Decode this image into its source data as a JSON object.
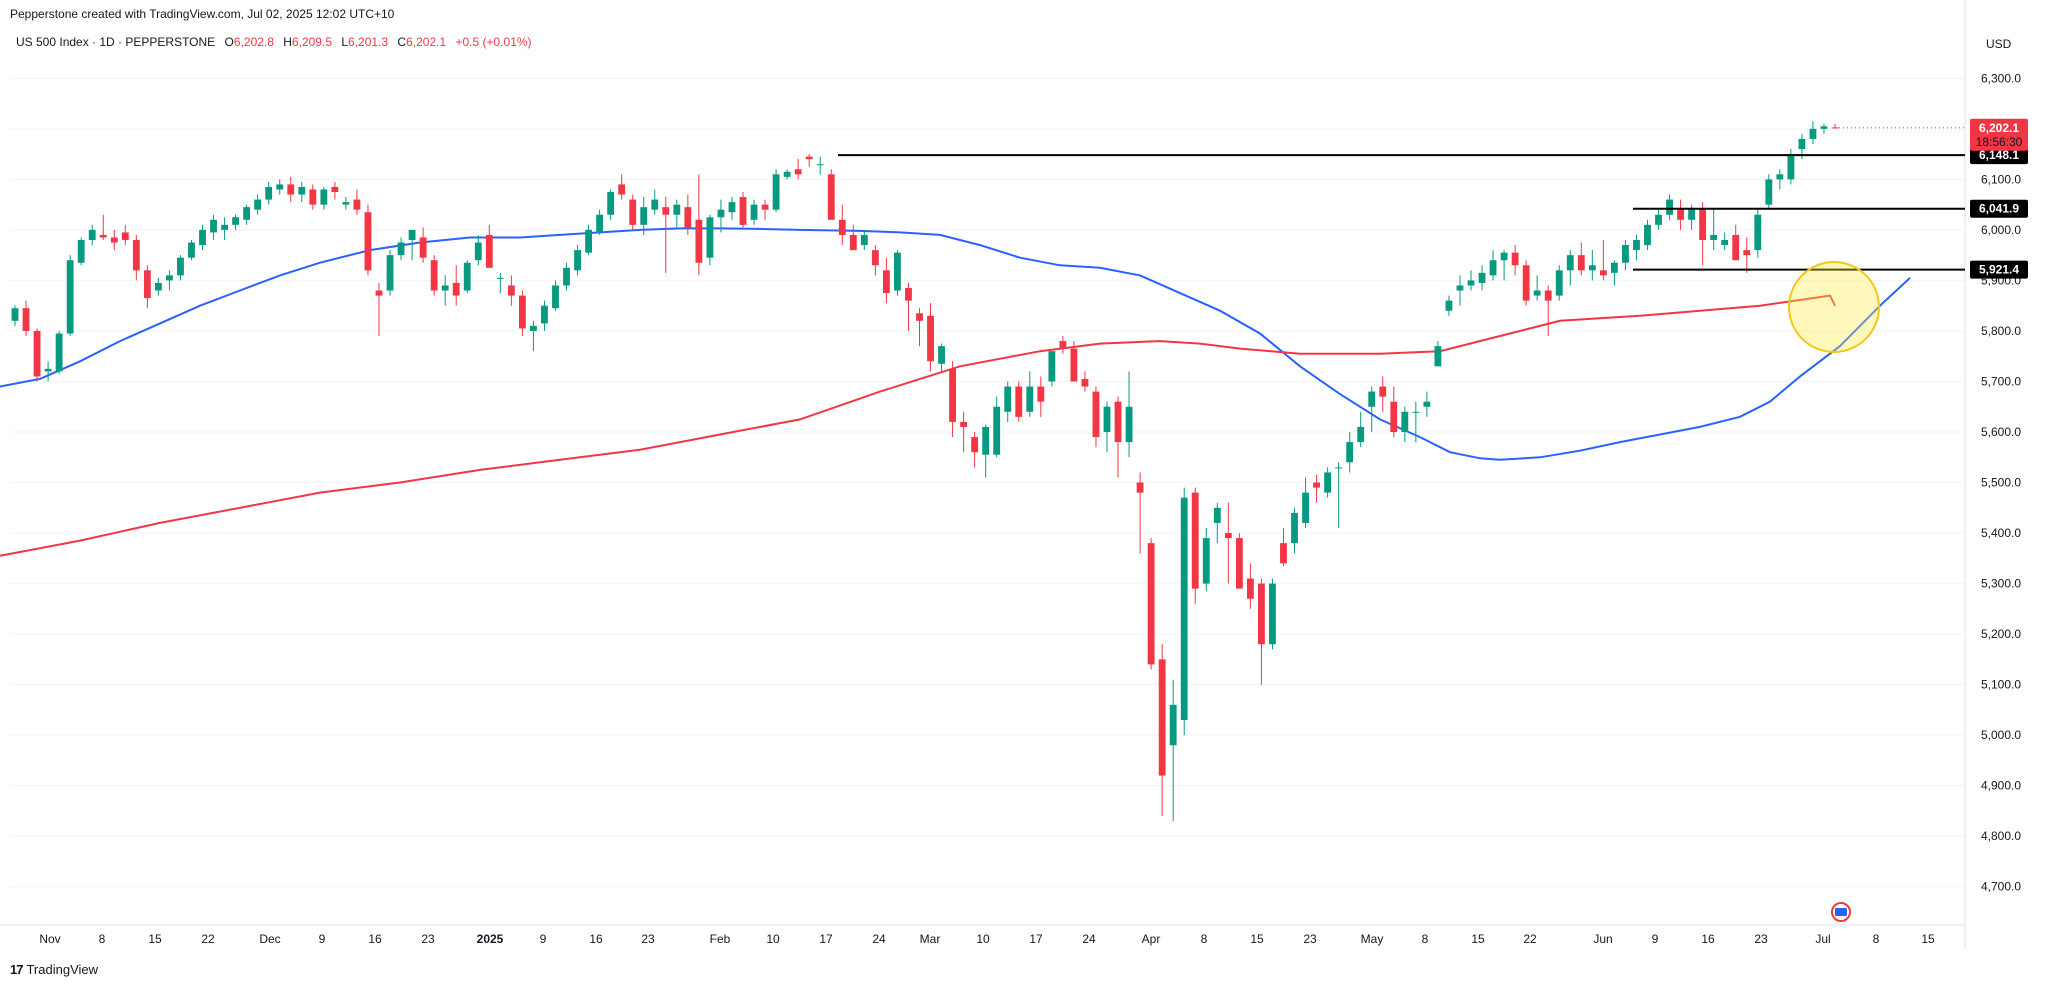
{
  "header": {
    "attribution": "Pepperstone created with TradingView.com, Jul 02, 2025 12:02 UTC+10"
  },
  "symbol": {
    "name": "US 500 Index · 1D · PEPPERSTONE",
    "open_label": "O",
    "open": "6,202.8",
    "high_label": "H",
    "high": "6,209.5",
    "low_label": "L",
    "low": "6,201.3",
    "close_label": "C",
    "close": "6,202.1",
    "change": "+0.5 (+0.01%)"
  },
  "currency": "USD",
  "footer": {
    "brand": "TradingView",
    "mark": "17"
  },
  "colors": {
    "up": "#089981",
    "down": "#f23645",
    "ma_fast": "#2962ff",
    "ma_slow": "#f23645",
    "highlight": "#ffeb3b"
  },
  "chart_data": {
    "type": "candlestick",
    "ylim": [
      4650,
      6360
    ],
    "yticks": [
      "6,300.0",
      "6,200.0",
      "6,100.0",
      "6,000.0",
      "5,900.0",
      "5,800.0",
      "5,700.0",
      "5,600.0",
      "5,500.0",
      "5,400.0",
      "5,300.0",
      "5,200.0",
      "5,100.0",
      "5,000.0",
      "4,900.0",
      "4,800.0",
      "4,700.0"
    ],
    "xticks": [
      "Nov",
      "8",
      "15",
      "22",
      "Dec",
      "9",
      "16",
      "23",
      "2025",
      "9",
      "16",
      "23",
      "Feb",
      "10",
      "17",
      "24",
      "Mar",
      "10",
      "17",
      "24",
      "Apr",
      "8",
      "15",
      "23",
      "May",
      "8",
      "15",
      "22",
      "Jun",
      "9",
      "16",
      "23",
      "Jul",
      "8",
      "15"
    ],
    "horizontal_levels": [
      {
        "price": 6148.1,
        "label": "6,148.1"
      },
      {
        "price": 6041.9,
        "label": "6,041.9"
      },
      {
        "price": 5921.4,
        "label": "5,921.4"
      }
    ],
    "last_price": {
      "label": "6,202.1",
      "countdown": "18:56:30"
    },
    "candles": [
      [
        5820,
        5850,
        5810,
        5845
      ],
      [
        5845,
        5860,
        5790,
        5800
      ],
      [
        5800,
        5805,
        5700,
        5710
      ],
      [
        5720,
        5740,
        5700,
        5725
      ],
      [
        5720,
        5800,
        5715,
        5795
      ],
      [
        5795,
        5950,
        5790,
        5940
      ],
      [
        5935,
        5985,
        5930,
        5980
      ],
      [
        5980,
        6010,
        5970,
        6000
      ],
      [
        5990,
        6030,
        5980,
        5985
      ],
      [
        5985,
        6000,
        5960,
        5975
      ],
      [
        5995,
        6010,
        5970,
        5980
      ],
      [
        5980,
        5990,
        5900,
        5920
      ],
      [
        5920,
        5930,
        5845,
        5865
      ],
      [
        5880,
        5905,
        5870,
        5895
      ],
      [
        5900,
        5920,
        5880,
        5910
      ],
      [
        5910,
        5950,
        5900,
        5945
      ],
      [
        5945,
        5980,
        5940,
        5975
      ],
      [
        5970,
        6010,
        5960,
        6000
      ],
      [
        5995,
        6030,
        5980,
        6020
      ],
      [
        6000,
        6025,
        5980,
        6010
      ],
      [
        6010,
        6030,
        6000,
        6025
      ],
      [
        6020,
        6050,
        6010,
        6045
      ],
      [
        6040,
        6070,
        6030,
        6060
      ],
      [
        6060,
        6095,
        6050,
        6085
      ],
      [
        6080,
        6100,
        6070,
        6090
      ],
      [
        6090,
        6105,
        6055,
        6070
      ],
      [
        6070,
        6095,
        6055,
        6085
      ],
      [
        6080,
        6090,
        6040,
        6050
      ],
      [
        6050,
        6085,
        6040,
        6080
      ],
      [
        6085,
        6095,
        6060,
        6075
      ],
      [
        6050,
        6065,
        6040,
        6055
      ],
      [
        6060,
        6080,
        6030,
        6040
      ],
      [
        6035,
        6050,
        5910,
        5920
      ],
      [
        5880,
        5895,
        5790,
        5870
      ],
      [
        5880,
        5960,
        5870,
        5950
      ],
      [
        5950,
        5985,
        5940,
        5975
      ],
      [
        5980,
        6000,
        5940,
        6000
      ],
      [
        5985,
        6005,
        5935,
        5945
      ],
      [
        5940,
        5950,
        5870,
        5880
      ],
      [
        5880,
        5910,
        5850,
        5890
      ],
      [
        5895,
        5930,
        5850,
        5870
      ],
      [
        5880,
        5940,
        5875,
        5935
      ],
      [
        5940,
        5990,
        5930,
        5975
      ],
      [
        5990,
        6010,
        5935,
        5925
      ],
      [
        5905,
        5915,
        5875,
        5905
      ],
      [
        5890,
        5910,
        5850,
        5870
      ],
      [
        5870,
        5880,
        5790,
        5805
      ],
      [
        5800,
        5820,
        5760,
        5810
      ],
      [
        5815,
        5860,
        5800,
        5850
      ],
      [
        5845,
        5900,
        5840,
        5890
      ],
      [
        5890,
        5935,
        5880,
        5925
      ],
      [
        5920,
        5970,
        5910,
        5960
      ],
      [
        5955,
        6010,
        5950,
        6000
      ],
      [
        5995,
        6040,
        5990,
        6030
      ],
      [
        6030,
        6080,
        6020,
        6075
      ],
      [
        6090,
        6110,
        6060,
        6070
      ],
      [
        6060,
        6070,
        6000,
        6010
      ],
      [
        6010,
        6065,
        5990,
        6045
      ],
      [
        6040,
        6080,
        6030,
        6060
      ],
      [
        6045,
        6065,
        5915,
        6030
      ],
      [
        6030,
        6060,
        6005,
        6050
      ],
      [
        6045,
        6070,
        5990,
        6005
      ],
      [
        6020,
        6110,
        5910,
        5935
      ],
      [
        5945,
        6030,
        5930,
        6025
      ],
      [
        6025,
        6060,
        5995,
        6040
      ],
      [
        6035,
        6065,
        6020,
        6055
      ],
      [
        6065,
        6075,
        6005,
        6010
      ],
      [
        6020,
        6060,
        6010,
        6050
      ],
      [
        6050,
        6060,
        6020,
        6040
      ],
      [
        6040,
        6120,
        6035,
        6110
      ],
      [
        6105,
        6120,
        6100,
        6115
      ],
      [
        6120,
        6140,
        6100,
        6110
      ],
      [
        6145,
        6150,
        6125,
        6140
      ],
      [
        6130,
        6145,
        6110,
        6130
      ],
      [
        6110,
        6120,
        6020,
        6020
      ],
      [
        6020,
        6050,
        5970,
        5990
      ],
      [
        5990,
        6010,
        5960,
        5960
      ],
      [
        5970,
        6000,
        5960,
        5990
      ],
      [
        5960,
        5970,
        5910,
        5930
      ],
      [
        5920,
        5945,
        5855,
        5875
      ],
      [
        5880,
        5960,
        5870,
        5955
      ],
      [
        5885,
        5895,
        5800,
        5860
      ],
      [
        5835,
        5845,
        5770,
        5820
      ],
      [
        5830,
        5855,
        5720,
        5740
      ],
      [
        5735,
        5775,
        5720,
        5770
      ],
      [
        5725,
        5740,
        5590,
        5620
      ],
      [
        5620,
        5640,
        5560,
        5610
      ],
      [
        5590,
        5600,
        5530,
        5560
      ],
      [
        5555,
        5615,
        5510,
        5610
      ],
      [
        5555,
        5670,
        5550,
        5650
      ],
      [
        5640,
        5700,
        5620,
        5690
      ],
      [
        5690,
        5700,
        5620,
        5630
      ],
      [
        5640,
        5720,
        5630,
        5690
      ],
      [
        5690,
        5710,
        5630,
        5660
      ],
      [
        5700,
        5760,
        5690,
        5760
      ],
      [
        5780,
        5790,
        5755,
        5765
      ],
      [
        5765,
        5780,
        5700,
        5700
      ],
      [
        5705,
        5720,
        5680,
        5690
      ],
      [
        5680,
        5690,
        5570,
        5590
      ],
      [
        5600,
        5660,
        5560,
        5650
      ],
      [
        5660,
        5670,
        5510,
        5580
      ],
      [
        5580,
        5720,
        5550,
        5650
      ],
      [
        5500,
        5520,
        5360,
        5480
      ],
      [
        5380,
        5390,
        5130,
        5140
      ],
      [
        5150,
        5180,
        4840,
        4920
      ],
      [
        4980,
        5110,
        4830,
        5060
      ],
      [
        5030,
        5490,
        5000,
        5470
      ],
      [
        5480,
        5490,
        5260,
        5290
      ],
      [
        5300,
        5410,
        5285,
        5390
      ],
      [
        5420,
        5460,
        5380,
        5450
      ],
      [
        5400,
        5460,
        5300,
        5390
      ],
      [
        5390,
        5400,
        5290,
        5290
      ],
      [
        5310,
        5340,
        5250,
        5270
      ],
      [
        5300,
        5310,
        5100,
        5180
      ],
      [
        5180,
        5310,
        5170,
        5300
      ],
      [
        5380,
        5410,
        5335,
        5340
      ],
      [
        5380,
        5450,
        5360,
        5440
      ],
      [
        5420,
        5510,
        5410,
        5480
      ],
      [
        5500,
        5515,
        5460,
        5490
      ],
      [
        5480,
        5530,
        5470,
        5520
      ],
      [
        5530,
        5540,
        5410,
        5530
      ],
      [
        5540,
        5600,
        5520,
        5580
      ],
      [
        5580,
        5640,
        5570,
        5610
      ],
      [
        5650,
        5690,
        5600,
        5680
      ],
      [
        5690,
        5710,
        5640,
        5670
      ],
      [
        5660,
        5690,
        5590,
        5600
      ],
      [
        5600,
        5650,
        5580,
        5640
      ],
      [
        5640,
        5660,
        5580,
        5640
      ],
      [
        5650,
        5680,
        5630,
        5660
      ],
      [
        5730,
        5780,
        5730,
        5770
      ],
      [
        5840,
        5870,
        5830,
        5860
      ],
      [
        5880,
        5910,
        5850,
        5890
      ],
      [
        5890,
        5920,
        5880,
        5900
      ],
      [
        5895,
        5930,
        5880,
        5915
      ],
      [
        5910,
        5960,
        5900,
        5940
      ],
      [
        5940,
        5960,
        5900,
        5955
      ],
      [
        5955,
        5970,
        5910,
        5930
      ],
      [
        5930,
        5940,
        5850,
        5860
      ],
      [
        5870,
        5910,
        5860,
        5880
      ],
      [
        5880,
        5890,
        5790,
        5860
      ],
      [
        5870,
        5930,
        5860,
        5920
      ],
      [
        5920,
        5960,
        5890,
        5950
      ],
      [
        5950,
        5975,
        5910,
        5920
      ],
      [
        5920,
        5960,
        5900,
        5930
      ],
      [
        5920,
        5980,
        5900,
        5910
      ],
      [
        5915,
        5940,
        5890,
        5935
      ],
      [
        5935,
        5980,
        5920,
        5970
      ],
      [
        5960,
        5990,
        5940,
        5980
      ],
      [
        5970,
        6020,
        5960,
        6010
      ],
      [
        6010,
        6040,
        6000,
        6030
      ],
      [
        6030,
        6070,
        6020,
        6060
      ],
      [
        6040,
        6060,
        6000,
        6020
      ],
      [
        6020,
        6050,
        6000,
        6040
      ],
      [
        6040,
        6055,
        5930,
        5980
      ],
      [
        5980,
        6040,
        5960,
        5990
      ],
      [
        5970,
        5995,
        5960,
        5980
      ],
      [
        5990,
        6010,
        5940,
        5940
      ],
      [
        5960,
        5985,
        5915,
        5950
      ],
      [
        5960,
        6040,
        5945,
        6030
      ],
      [
        6050,
        6110,
        6040,
        6100
      ],
      [
        6100,
        6120,
        6080,
        6110
      ],
      [
        6100,
        6160,
        6090,
        6150
      ],
      [
        6160,
        6190,
        6140,
        6180
      ],
      [
        6180,
        6215,
        6170,
        6200
      ],
      [
        6200,
        6210,
        6190,
        6205
      ],
      [
        6202.8,
        6209.5,
        6201.3,
        6202.1
      ]
    ],
    "moving_averages": [
      {
        "color": "#2962ff",
        "points": [
          [
            0,
            5690
          ],
          [
            40,
            5705
          ],
          [
            80,
            5740
          ],
          [
            120,
            5780
          ],
          [
            160,
            5815
          ],
          [
            200,
            5850
          ],
          [
            240,
            5880
          ],
          [
            280,
            5910
          ],
          [
            320,
            5935
          ],
          [
            370,
            5960
          ],
          [
            420,
            5975
          ],
          [
            470,
            5985
          ],
          [
            520,
            5985
          ],
          [
            560,
            5990
          ],
          [
            600,
            5995
          ],
          [
            640,
            6000
          ],
          [
            680,
            6003
          ],
          [
            720,
            6003
          ],
          [
            760,
            6002
          ],
          [
            800,
            6000
          ],
          [
            860,
            5998
          ],
          [
            900,
            5995
          ],
          [
            940,
            5990
          ],
          [
            980,
            5970
          ],
          [
            1020,
            5945
          ],
          [
            1060,
            5930
          ],
          [
            1100,
            5925
          ],
          [
            1140,
            5910
          ],
          [
            1180,
            5875
          ],
          [
            1220,
            5840
          ],
          [
            1260,
            5795
          ],
          [
            1300,
            5730
          ],
          [
            1340,
            5675
          ],
          [
            1380,
            5625
          ],
          [
            1420,
            5590
          ],
          [
            1450,
            5560
          ],
          [
            1480,
            5548
          ],
          [
            1500,
            5545
          ],
          [
            1540,
            5550
          ],
          [
            1580,
            5563
          ],
          [
            1620,
            5580
          ],
          [
            1660,
            5595
          ],
          [
            1700,
            5610
          ],
          [
            1740,
            5630
          ],
          [
            1770,
            5660
          ],
          [
            1800,
            5710
          ],
          [
            1840,
            5770
          ],
          [
            1880,
            5850
          ],
          [
            1910,
            5905
          ]
        ]
      },
      {
        "color": "#f23645",
        "points": [
          [
            0,
            5355
          ],
          [
            80,
            5385
          ],
          [
            160,
            5420
          ],
          [
            240,
            5450
          ],
          [
            320,
            5480
          ],
          [
            400,
            5500
          ],
          [
            480,
            5525
          ],
          [
            560,
            5545
          ],
          [
            640,
            5565
          ],
          [
            720,
            5595
          ],
          [
            800,
            5625
          ],
          [
            880,
            5680
          ],
          [
            960,
            5730
          ],
          [
            1040,
            5760
          ],
          [
            1100,
            5775
          ],
          [
            1160,
            5780
          ],
          [
            1200,
            5775
          ],
          [
            1240,
            5765
          ],
          [
            1300,
            5755
          ],
          [
            1380,
            5755
          ],
          [
            1440,
            5760
          ],
          [
            1500,
            5790
          ],
          [
            1560,
            5820
          ],
          [
            1640,
            5830
          ],
          [
            1700,
            5840
          ],
          [
            1760,
            5850
          ],
          [
            1830,
            5870
          ],
          [
            1835,
            5850
          ]
        ]
      }
    ]
  }
}
